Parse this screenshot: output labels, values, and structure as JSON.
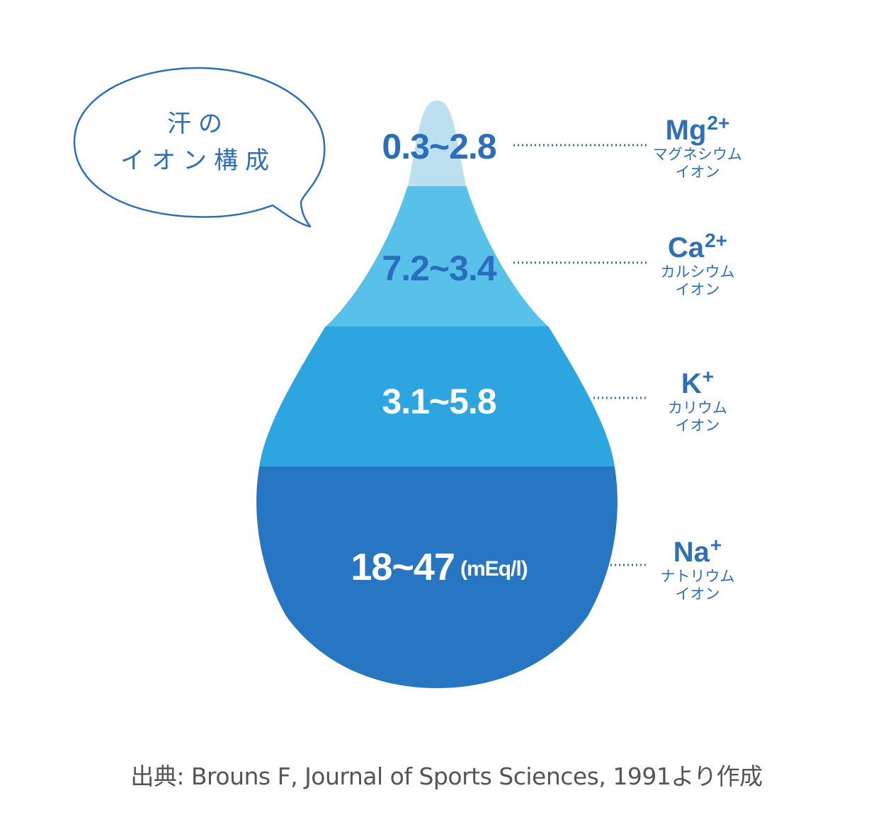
{
  "title_bubble": {
    "line1": "汗の",
    "line2": "イオン構成"
  },
  "colors": {
    "layer_mg": "#bde0f0",
    "layer_ca": "#58c1e9",
    "layer_k": "#2da5e0",
    "layer_na": "#2776c3",
    "text_blue": "#2d6fb8",
    "bubble_stroke": "#2d6fb8"
  },
  "layers": [
    {
      "key": "mg",
      "range": "0.3~2.8",
      "symbol": "Mg",
      "charge": "2+",
      "name_line1": "マグネシウム",
      "name_line2": "イオン"
    },
    {
      "key": "ca",
      "range": "7.2~3.4",
      "symbol": "Ca",
      "charge": "2+",
      "name_line1": "カルシウム",
      "name_line2": "イオン"
    },
    {
      "key": "k",
      "range": "3.1~5.8",
      "symbol": "K",
      "charge": "+",
      "name_line1": "カリウム",
      "name_line2": "イオン"
    },
    {
      "key": "na",
      "range": "18~47",
      "unit": "(mEq/l)",
      "symbol": "Na",
      "charge": "+",
      "name_line1": "ナトリウム",
      "name_line2": "イオン"
    }
  ],
  "source": "出典: Brouns F, Journal of Sports Sciences, 1991より作成"
}
